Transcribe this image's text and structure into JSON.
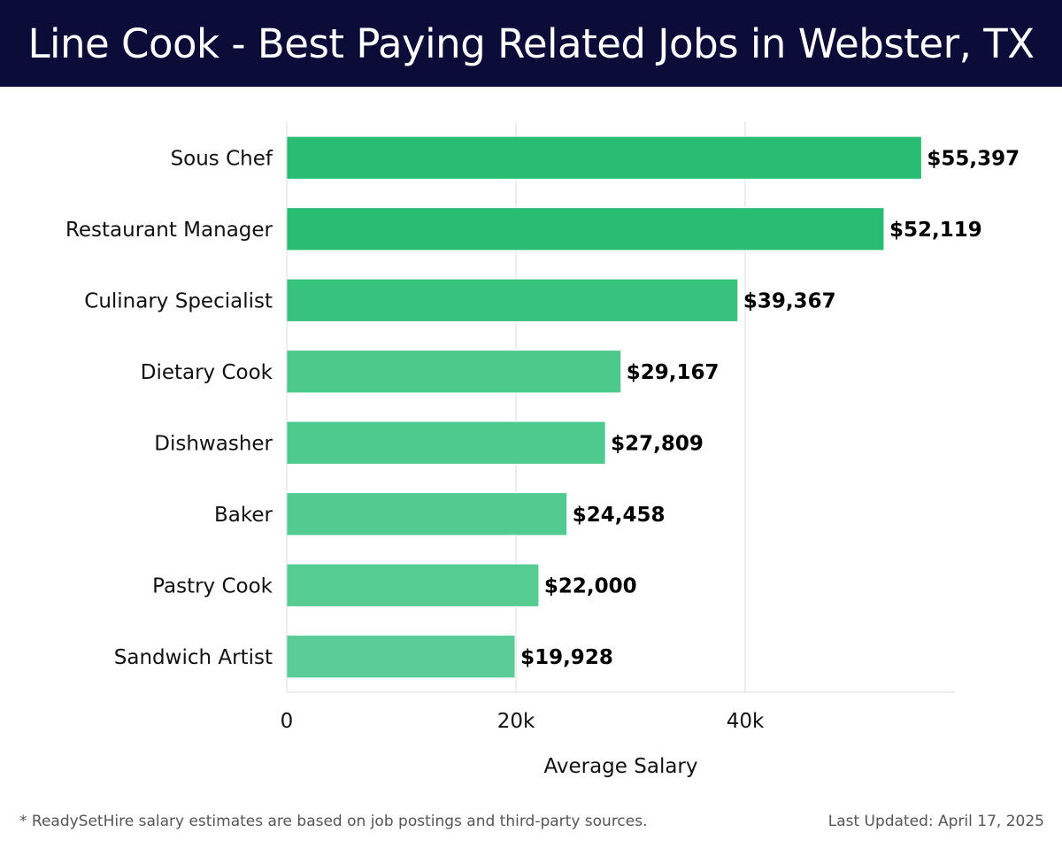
{
  "header": {
    "title": "Line Cook - Best Paying Related Jobs in Webster, TX"
  },
  "chart_data": {
    "type": "bar",
    "orientation": "horizontal",
    "categories": [
      "Sous Chef",
      "Restaurant Manager",
      "Culinary Specialist",
      "Dietary Cook",
      "Dishwasher",
      "Baker",
      "Pastry Cook",
      "Sandwich Artist"
    ],
    "values": [
      55397,
      52119,
      39367,
      29167,
      27809,
      24458,
      22000,
      19928
    ],
    "value_labels": [
      "$55,397",
      "$52,119",
      "$39,367",
      "$29,167",
      "$27,809",
      "$24,458",
      "$22,000",
      "$19,928"
    ],
    "xlabel": "Average Salary",
    "ylabel": "",
    "xlim": [
      0,
      58300
    ],
    "x_ticks": [
      0,
      20000,
      40000
    ],
    "x_tick_labels": [
      "0",
      "20k",
      "40k"
    ],
    "grid": "vertical",
    "colors": [
      "#28bd73",
      "#28bd73",
      "#37c27e",
      "#4dc98c",
      "#4fca8e",
      "#52cb90",
      "#55cc92",
      "#59cd95"
    ]
  },
  "footer": {
    "note": "* ReadySetHire salary estimates are based on job postings and third-party sources.",
    "updated": "Last Updated: April 17, 2025"
  }
}
